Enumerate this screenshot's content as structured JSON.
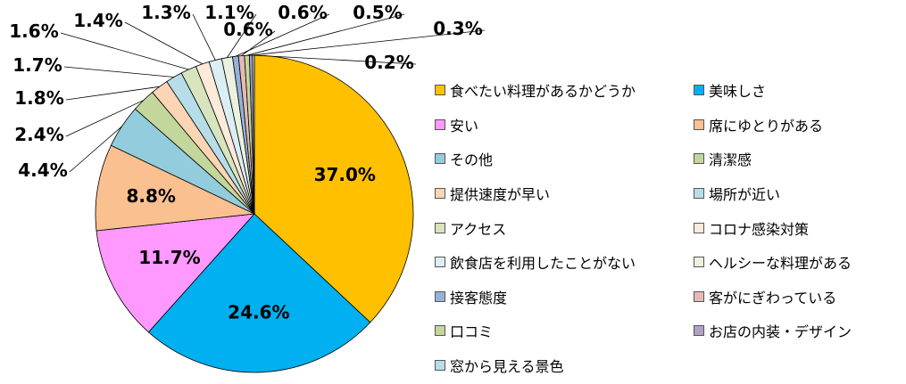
{
  "chart_data": {
    "type": "pie",
    "title": "",
    "legend_placement": "right",
    "slices": [
      {
        "label": "食べたい料理があるかどうか",
        "value": 37.0,
        "value_label": "37.0%",
        "color": "#FFC000"
      },
      {
        "label": "美味しさ",
        "value": 24.6,
        "value_label": "24.6%",
        "color": "#00B0F0"
      },
      {
        "label": "安い",
        "value": 11.7,
        "value_label": "11.7%",
        "color": "#FF99FF"
      },
      {
        "label": "席にゆとりがある",
        "value": 8.8,
        "value_label": "8.8%",
        "color": "#FAC090"
      },
      {
        "label": "その他",
        "value": 4.4,
        "value_label": "4.4%",
        "color": "#93CDDD"
      },
      {
        "label": "清潔感",
        "value": 2.4,
        "value_label": "2.4%",
        "color": "#C3D69B"
      },
      {
        "label": "提供速度が早い",
        "value": 1.8,
        "value_label": "1.8%",
        "color": "#FCD5B5"
      },
      {
        "label": "場所が近い",
        "value": 1.7,
        "value_label": "1.7%",
        "color": "#B7DEE8"
      },
      {
        "label": "アクセス",
        "value": 1.6,
        "value_label": "1.6%",
        "color": "#D7E4BD"
      },
      {
        "label": "コロナ感染対策",
        "value": 1.4,
        "value_label": "1.4%",
        "color": "#FDEADA"
      },
      {
        "label": "飲食店を利用したことがない",
        "value": 1.3,
        "value_label": "1.3%",
        "color": "#DAEEF3"
      },
      {
        "label": "ヘルシーな料理がある",
        "value": 1.1,
        "value_label": "1.1%",
        "color": "#EBF1DE"
      },
      {
        "label": "接客態度",
        "value": 0.6,
        "value_label": "0.6%",
        "color": "#95B3D7"
      },
      {
        "label": "客がにぎわっている",
        "value": 0.6,
        "value_label": "0.6%",
        "color": "#E6B9B8"
      },
      {
        "label": "口コミ",
        "value": 0.5,
        "value_label": "0.5%",
        "color": "#C4D79B"
      },
      {
        "label": "お店の内装・デザイン",
        "value": 0.3,
        "value_label": "0.3%",
        "color": "#B1A0C7"
      },
      {
        "label": "窓から見える景色",
        "value": 0.2,
        "value_label": "0.2%",
        "color": "#B7DEE8"
      }
    ]
  }
}
